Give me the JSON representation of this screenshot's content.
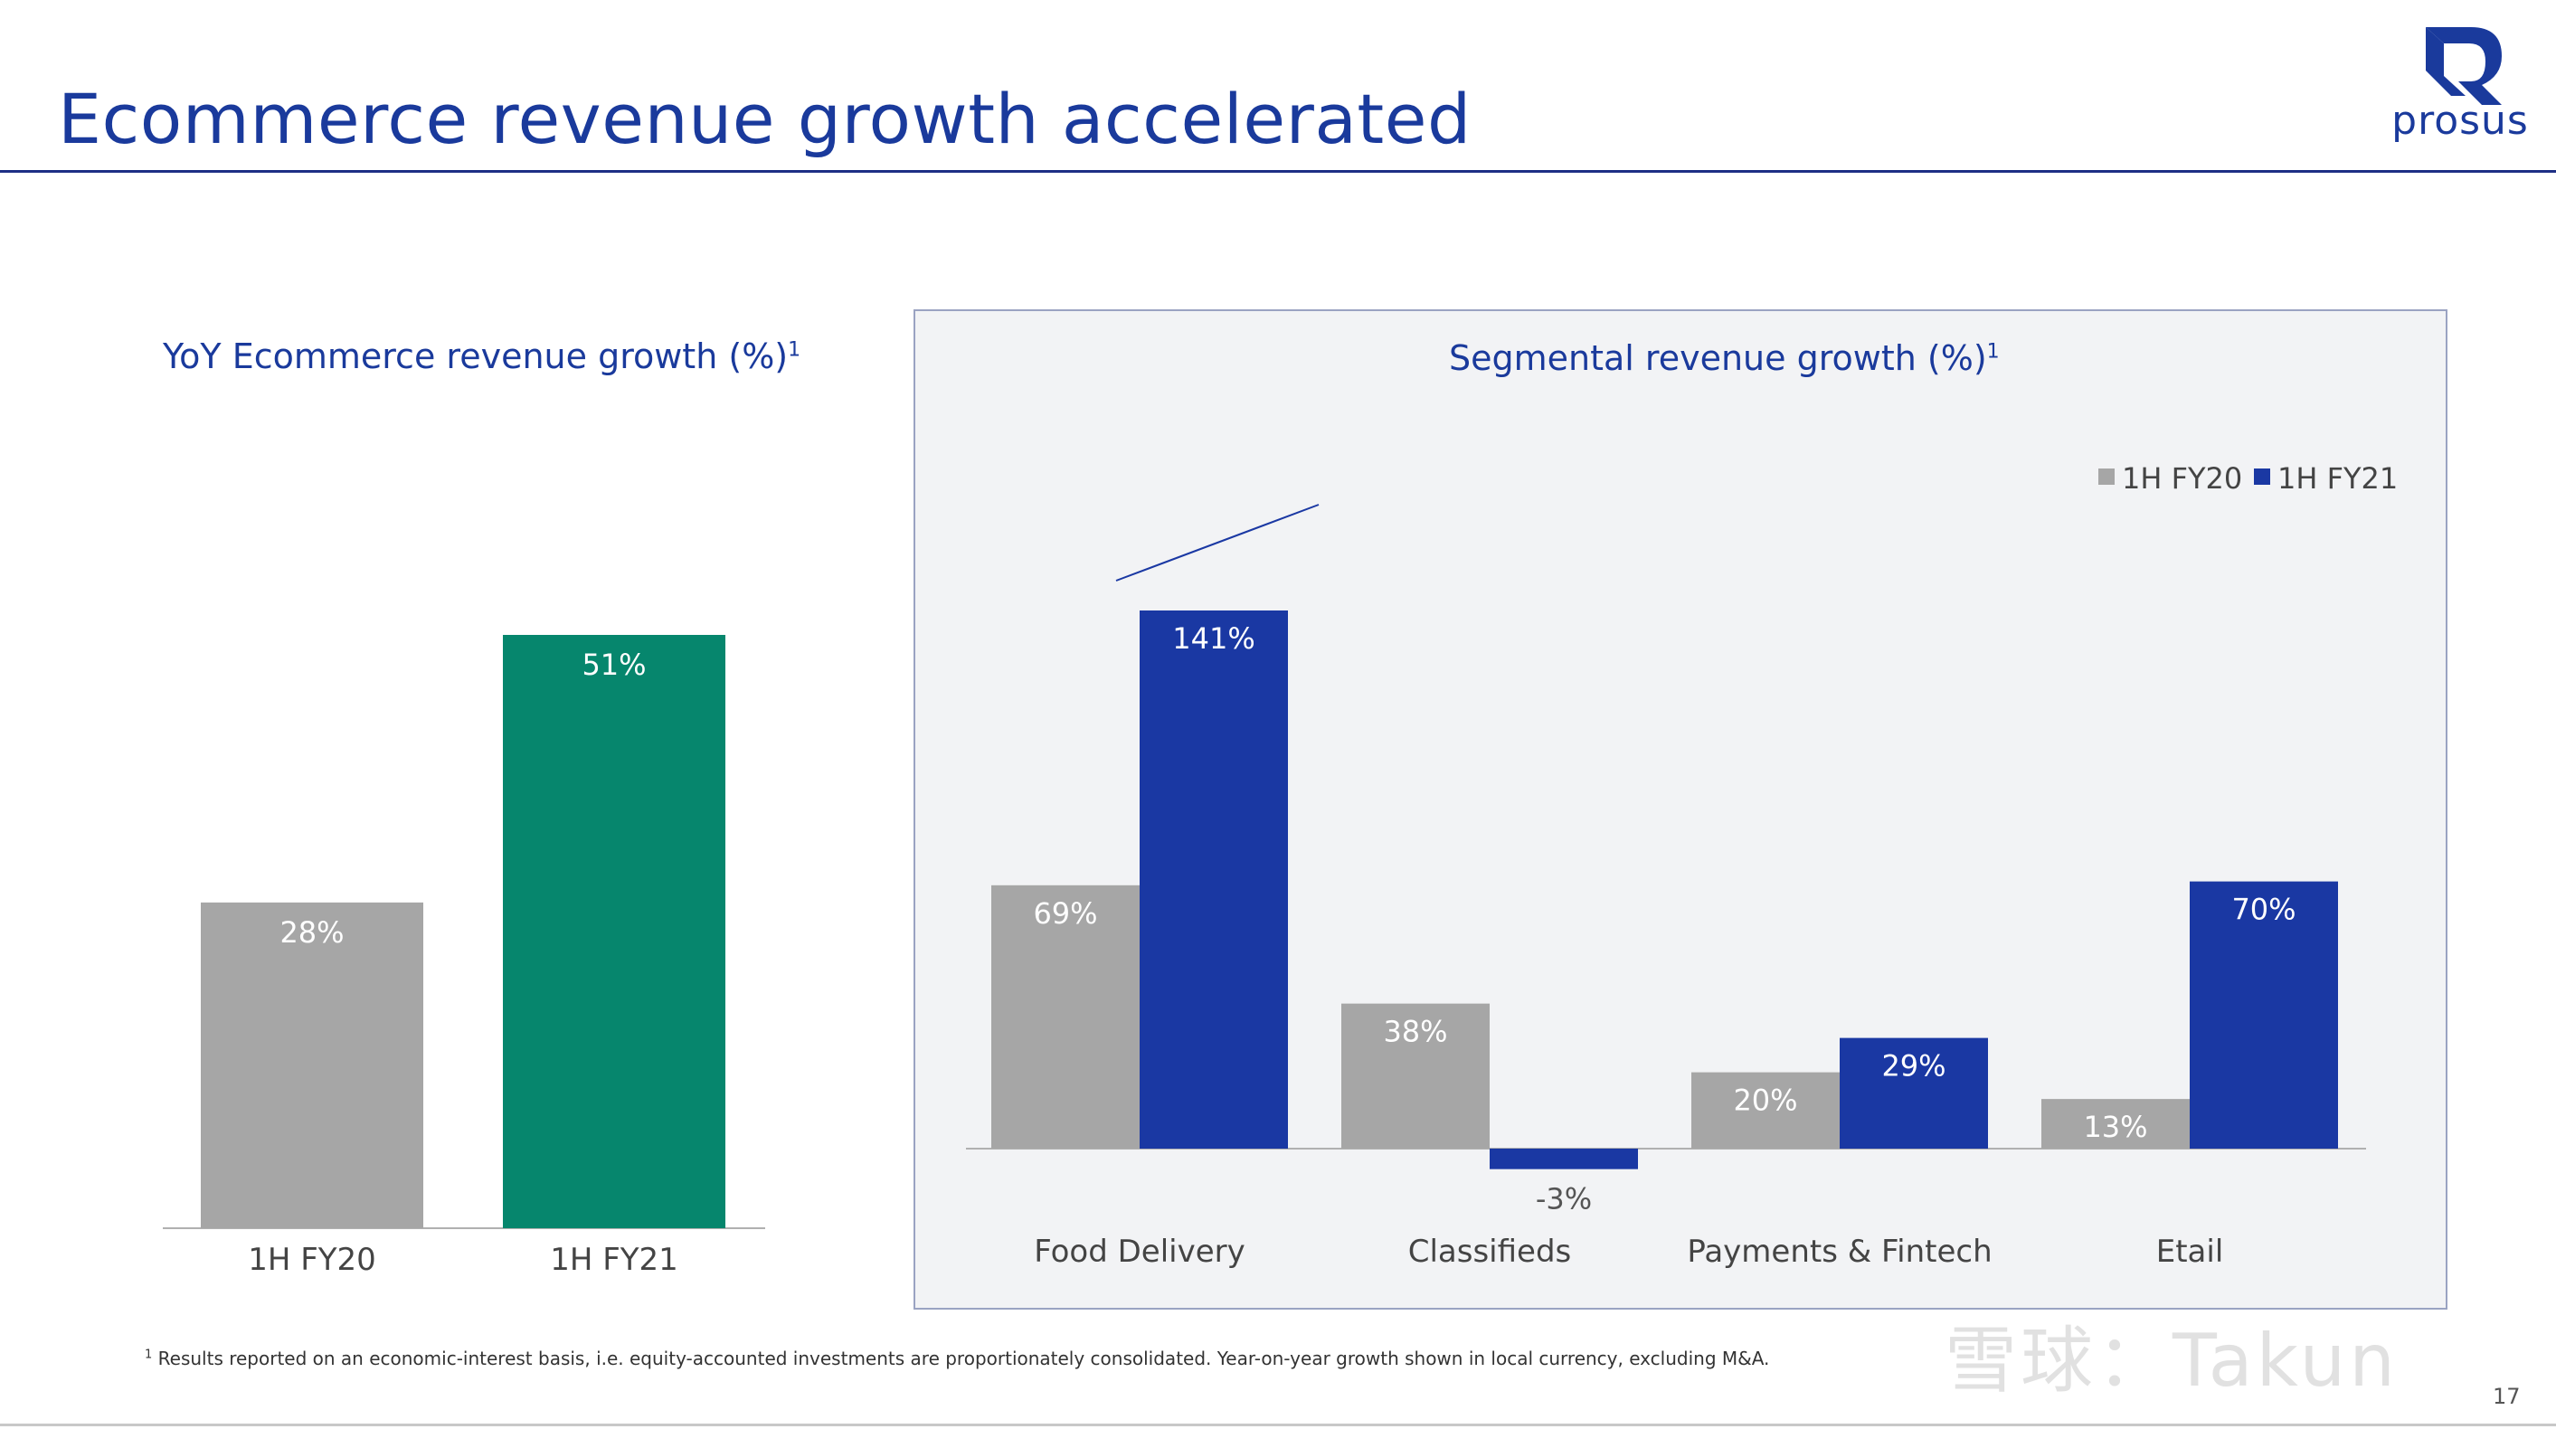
{
  "slide": {
    "title": "Ecommerce revenue growth accelerated",
    "logo_text": "prosus",
    "page_number": "17",
    "footnote_marker": "1",
    "footnote": "Results reported on an economic-interest basis, i.e. equity-accounted investments are proportionately consolidated. Year-on-year growth shown in local currency, excluding M&A.",
    "watermark": "雪球：Takun",
    "colors": {
      "title": "#1a3a9c",
      "grey": "#a6a6a6",
      "green": "#06866d",
      "blue": "#1a38a3"
    }
  },
  "chart_data": [
    {
      "type": "bar",
      "title": "YoY Ecommerce revenue growth (%)",
      "title_sup": "1",
      "categories": [
        "1H FY20",
        "1H FY21"
      ],
      "values": [
        28,
        51
      ],
      "data_labels": [
        "28%",
        "51%"
      ],
      "colors": [
        "#a6a6a6",
        "#06866d"
      ],
      "ylim": [
        0,
        51
      ],
      "grid": false
    },
    {
      "type": "bar",
      "title": "Segmental revenue growth (%)",
      "title_sup": "1",
      "categories": [
        "Food Delivery",
        "Classifieds",
        "Payments & Fintech",
        "Etail"
      ],
      "series": [
        {
          "name": "1H FY20",
          "color": "#a6a6a6",
          "values": [
            69,
            38,
            20,
            13
          ],
          "labels": [
            "69%",
            "38%",
            "20%",
            "13%"
          ]
        },
        {
          "name": "1H FY21",
          "color": "#1a38a3",
          "values": [
            141,
            -3,
            29,
            70
          ],
          "labels": [
            "141%",
            "-3%",
            "29%",
            "70%"
          ]
        }
      ],
      "ylim": [
        -3,
        141
      ],
      "legend": "top-right",
      "grid": false,
      "axis_break": "Food Delivery 1H FY21 bar"
    }
  ]
}
